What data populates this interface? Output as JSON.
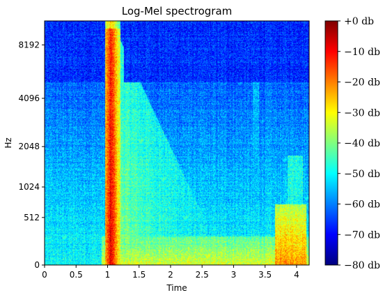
{
  "chart_data": {
    "type": "heatmap",
    "title": "Log-Mel spectrogram",
    "xlabel": "Time",
    "ylabel": "Hz",
    "xlim": [
      0,
      4.2
    ],
    "x_ticks": [
      "0",
      "0.5",
      "1",
      "1.5",
      "2",
      "2.5",
      "3",
      "3.5",
      "4"
    ],
    "x_tick_values": [
      0,
      0.5,
      1,
      1.5,
      2,
      2.5,
      3,
      3.5,
      4
    ],
    "y_scale": "mel",
    "y_ticks": [
      "0",
      "512",
      "1024",
      "2048",
      "4096",
      "8192"
    ],
    "y_tick_values": [
      0,
      512,
      1024,
      2048,
      4096,
      8192
    ],
    "ylim": [
      0,
      11025
    ],
    "colormap": "jet",
    "colorbar": {
      "range": [
        -80,
        0
      ],
      "ticks": [
        "+0 db",
        "−10 db",
        "−20 db",
        "−30 db",
        "−40 db",
        "−50 db",
        "−60 db",
        "−70 db",
        "−80 db"
      ],
      "tick_values": [
        0,
        -10,
        -20,
        -30,
        -40,
        -50,
        -60,
        -70,
        -80
      ]
    },
    "events": [
      {
        "label": "onset",
        "time": 1.0,
        "level_db": -5
      },
      {
        "label": "decay",
        "time_range": [
          1.1,
          2.3
        ],
        "level_db": -40
      },
      {
        "label": "short burst",
        "time": 3.35,
        "level_db": -55
      },
      {
        "label": "late low-frequency energy",
        "time_range": [
          3.6,
          4.2
        ],
        "level_db": -20
      }
    ]
  }
}
